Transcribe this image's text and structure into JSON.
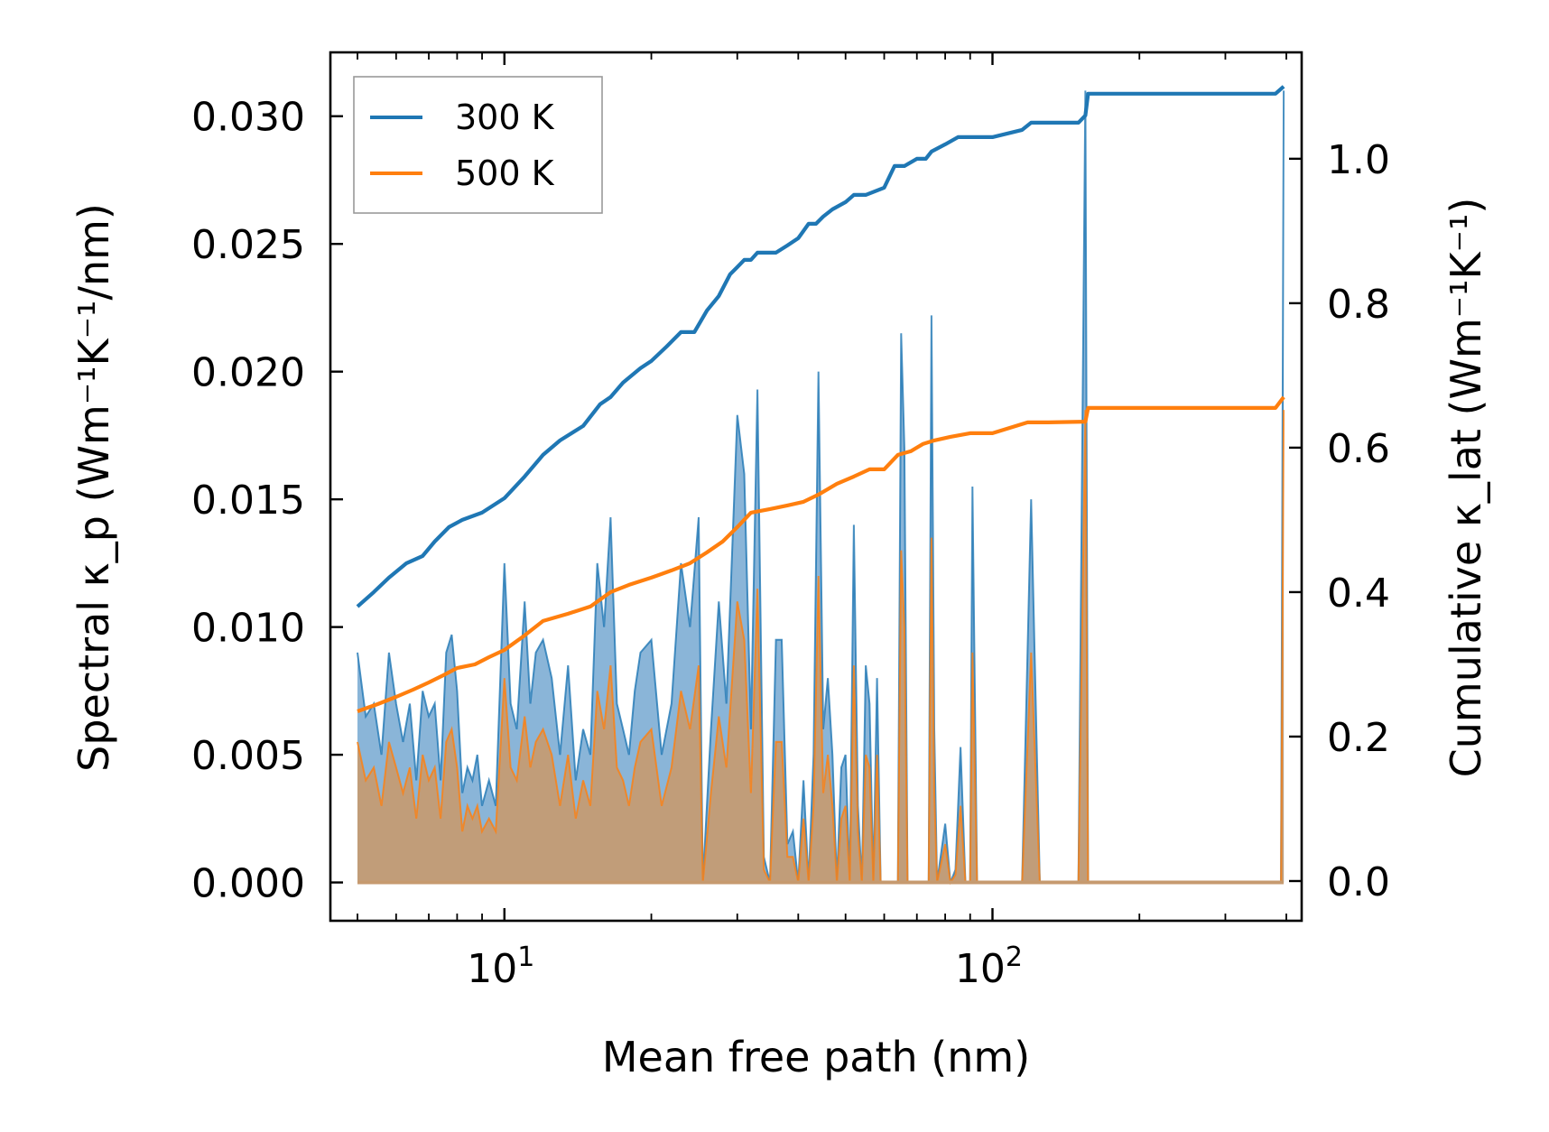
{
  "chart_data": {
    "type": "line",
    "title": "",
    "xlabel": "Mean free path (nm)",
    "ylabel_left": "Spectral κ_p (Wm⁻¹K⁻¹/nm)",
    "ylabel_right": "Cumulative κ_lat (Wm⁻¹K⁻¹)",
    "xscale": "log",
    "xlim": [
      4.4,
      430
    ],
    "ylim_left": [
      -0.0015,
      0.0325
    ],
    "ylim_right": [
      -0.055,
      1.1473
    ],
    "xticks": [
      {
        "value": 10,
        "base": "10",
        "exp": "1"
      },
      {
        "value": 100,
        "base": "10",
        "exp": "2"
      }
    ],
    "yticks_left": [
      "0.000",
      "0.005",
      "0.010",
      "0.015",
      "0.020",
      "0.025",
      "0.030"
    ],
    "yticks_right": [
      "0.0",
      "0.2",
      "0.4",
      "0.6",
      "0.8",
      "1.0"
    ],
    "legend": {
      "position": "top-left",
      "entries": [
        "300 K",
        "500 K"
      ]
    },
    "colors": {
      "s300": "#1f77b4",
      "s500": "#ff7f0e",
      "fill300": "#76a8d1",
      "fill500": "#c69a6f"
    },
    "series": [
      {
        "name": "300 K",
        "axis": "right",
        "kind": "cumulative",
        "x": [
          5.0,
          5.4,
          5.8,
          6.3,
          6.8,
          7.2,
          7.7,
          8.2,
          9.0,
          10.0,
          11.0,
          12.0,
          13.0,
          14.5,
          15.7,
          16.5,
          17.5,
          19.0,
          20.0,
          21.5,
          23.0,
          24.5,
          26.0,
          27.5,
          29.0,
          30.0,
          31.0,
          32.0,
          33.0,
          34.0,
          36.0,
          38.0,
          40.0,
          42.0,
          43.5,
          45.0,
          47.0,
          50.0,
          52.0,
          55.0,
          60.0,
          63.0,
          66.0,
          70.0,
          73.0,
          75.0,
          80.0,
          85.0,
          90.0,
          100.0,
          115.0,
          120.0,
          125.0,
          150.0,
          155.0,
          157.0,
          160.0,
          200.0,
          300.0,
          380.0,
          395.0
        ],
        "y": [
          0.38,
          0.4,
          0.42,
          0.44,
          0.45,
          0.47,
          0.49,
          0.5,
          0.51,
          0.53,
          0.56,
          0.59,
          0.61,
          0.63,
          0.66,
          0.67,
          0.69,
          0.71,
          0.72,
          0.74,
          0.76,
          0.76,
          0.79,
          0.81,
          0.84,
          0.85,
          0.86,
          0.86,
          0.87,
          0.87,
          0.87,
          0.88,
          0.89,
          0.91,
          0.91,
          0.92,
          0.93,
          0.94,
          0.95,
          0.95,
          0.96,
          0.99,
          0.99,
          1.0,
          1.0,
          1.01,
          1.02,
          1.03,
          1.03,
          1.03,
          1.04,
          1.05,
          1.05,
          1.05,
          1.06,
          1.09,
          1.09,
          1.09,
          1.09,
          1.09,
          1.1
        ]
      },
      {
        "name": "500 K",
        "axis": "right",
        "kind": "cumulative",
        "x": [
          5.0,
          5.5,
          6.0,
          6.5,
          7.0,
          7.5,
          8.0,
          8.7,
          9.3,
          10.0,
          11.0,
          12.0,
          13.5,
          15.0,
          16.5,
          18.0,
          20.0,
          22.0,
          24.0,
          26.0,
          28.0,
          30.0,
          32.0,
          35.0,
          38.0,
          41.0,
          44.0,
          48.0,
          52.0,
          56.0,
          60.0,
          64.0,
          68.0,
          72.0,
          76.0,
          82.0,
          90.0,
          100.0,
          118.0,
          130.0,
          155.0,
          157.0,
          200.0,
          300.0,
          380.0,
          395.0
        ],
        "y": [
          0.235,
          0.245,
          0.255,
          0.265,
          0.275,
          0.285,
          0.295,
          0.3,
          0.31,
          0.32,
          0.34,
          0.36,
          0.37,
          0.38,
          0.4,
          0.41,
          0.42,
          0.43,
          0.44,
          0.455,
          0.47,
          0.49,
          0.51,
          0.515,
          0.52,
          0.525,
          0.535,
          0.55,
          0.56,
          0.57,
          0.57,
          0.59,
          0.595,
          0.605,
          0.61,
          0.615,
          0.62,
          0.62,
          0.635,
          0.635,
          0.636,
          0.655,
          0.655,
          0.655,
          0.655,
          0.67
        ]
      },
      {
        "name": "300 K spectral",
        "axis": "left",
        "kind": "spectral",
        "x": [
          5.0,
          5.2,
          5.4,
          5.6,
          5.8,
          6.0,
          6.2,
          6.4,
          6.6,
          6.8,
          7.0,
          7.2,
          7.4,
          7.6,
          7.8,
          8.0,
          8.2,
          8.4,
          8.6,
          8.8,
          9.0,
          9.3,
          9.6,
          10.0,
          10.3,
          10.6,
          11.0,
          11.3,
          11.6,
          12.0,
          12.5,
          13.0,
          13.5,
          14.0,
          14.5,
          15.0,
          15.5,
          16.0,
          16.5,
          17.0,
          17.5,
          18.0,
          18.5,
          19.0,
          20.0,
          21.0,
          22.0,
          23.0,
          24.0,
          25.0,
          25.5,
          26.5,
          27.5,
          28.5,
          30.0,
          31.0,
          32.0,
          33.0,
          34.0,
          35.0,
          36.0,
          37.0,
          38.0,
          39.0,
          40.0,
          41.0,
          42.0,
          43.0,
          44.0,
          45.0,
          46.0,
          47.0,
          48.0,
          49.0,
          50.0,
          51.0,
          52.0,
          53.0,
          54.0,
          55.0,
          56.0,
          57.0,
          58.0,
          59.0,
          60.0,
          61.0,
          62.0,
          64.0,
          65.0,
          66.0,
          67.0,
          70.0,
          72.0,
          74.0,
          75.0,
          76.0,
          77.0,
          80.0,
          82.0,
          84.0,
          86.0,
          88.0,
          90.0,
          91.0,
          93.0,
          95.0,
          100.0,
          110.0,
          115.0,
          120.0,
          125.0,
          130.0,
          150.0,
          155.0,
          157.0,
          160.0,
          300.0,
          380.0,
          390.0,
          395.0
        ],
        "y": [
          0.009,
          0.0065,
          0.007,
          0.005,
          0.009,
          0.007,
          0.0055,
          0.007,
          0.004,
          0.0075,
          0.0065,
          0.007,
          0.004,
          0.009,
          0.0097,
          0.0075,
          0.0035,
          0.0045,
          0.004,
          0.005,
          0.003,
          0.004,
          0.003,
          0.0125,
          0.007,
          0.006,
          0.011,
          0.007,
          0.009,
          0.0095,
          0.008,
          0.005,
          0.0085,
          0.004,
          0.006,
          0.005,
          0.0125,
          0.01,
          0.0143,
          0.007,
          0.006,
          0.005,
          0.0075,
          0.009,
          0.0095,
          0.005,
          0.007,
          0.0125,
          0.01,
          0.0143,
          0.0,
          0.006,
          0.011,
          0.007,
          0.0183,
          0.016,
          0.006,
          0.0193,
          0.001,
          0.0,
          0.0095,
          0.0095,
          0.0015,
          0.002,
          0.0,
          0.004,
          0.0,
          0.005,
          0.02,
          0.006,
          0.008,
          0.005,
          0.0,
          0.0045,
          0.005,
          0.0,
          0.014,
          0.003,
          0.0,
          0.0085,
          0.007,
          0.0,
          0.008,
          0.0,
          0.0,
          0.0,
          0.0,
          0.0,
          0.0215,
          0.017,
          0.0,
          0.0,
          0.0,
          0.0,
          0.0222,
          0.006,
          0.0,
          0.0023,
          0.0,
          0.0005,
          0.0053,
          0.0,
          0.0,
          0.0155,
          0.0,
          0.0,
          0.0,
          0.0,
          0.0,
          0.015,
          0.0,
          0.0,
          0.0,
          0.031,
          0.0,
          0.0,
          0.0,
          0.0,
          0.0,
          0.031
        ]
      },
      {
        "name": "500 K spectral",
        "axis": "left",
        "kind": "spectral",
        "x": [
          5.0,
          5.2,
          5.4,
          5.6,
          5.8,
          6.0,
          6.2,
          6.4,
          6.6,
          6.8,
          7.0,
          7.2,
          7.4,
          7.6,
          7.8,
          8.0,
          8.2,
          8.4,
          8.6,
          8.8,
          9.0,
          9.3,
          9.6,
          10.0,
          10.3,
          10.6,
          11.0,
          11.3,
          11.6,
          12.0,
          12.5,
          13.0,
          13.5,
          14.0,
          14.5,
          15.0,
          15.5,
          16.0,
          16.5,
          17.0,
          17.5,
          18.0,
          18.5,
          19.0,
          20.0,
          21.0,
          22.0,
          23.0,
          24.0,
          25.0,
          25.5,
          26.5,
          27.5,
          28.5,
          30.0,
          31.0,
          32.0,
          33.0,
          34.0,
          35.0,
          36.0,
          37.0,
          38.0,
          39.0,
          40.0,
          41.0,
          42.0,
          43.0,
          44.0,
          45.0,
          46.0,
          47.0,
          48.0,
          49.0,
          50.0,
          51.0,
          52.0,
          53.0,
          54.0,
          55.0,
          56.0,
          57.0,
          58.0,
          59.0,
          60.0,
          61.0,
          62.0,
          64.0,
          65.0,
          66.0,
          67.0,
          70.0,
          72.0,
          74.0,
          75.0,
          76.0,
          77.0,
          80.0,
          82.0,
          84.0,
          86.0,
          88.0,
          90.0,
          91.0,
          93.0,
          95.0,
          100.0,
          110.0,
          115.0,
          120.0,
          125.0,
          130.0,
          150.0,
          155.0,
          157.0,
          160.0,
          300.0,
          380.0,
          390.0,
          395.0
        ],
        "y": [
          0.0055,
          0.004,
          0.0045,
          0.003,
          0.0055,
          0.0045,
          0.0035,
          0.0045,
          0.0025,
          0.005,
          0.004,
          0.0045,
          0.0025,
          0.0055,
          0.006,
          0.0045,
          0.002,
          0.003,
          0.0025,
          0.003,
          0.002,
          0.0025,
          0.002,
          0.008,
          0.0045,
          0.004,
          0.0065,
          0.0045,
          0.0055,
          0.006,
          0.005,
          0.003,
          0.005,
          0.0025,
          0.004,
          0.003,
          0.0075,
          0.006,
          0.0085,
          0.0045,
          0.004,
          0.003,
          0.0045,
          0.0055,
          0.006,
          0.003,
          0.0045,
          0.0075,
          0.006,
          0.0085,
          0.0,
          0.0035,
          0.0065,
          0.0045,
          0.011,
          0.0095,
          0.0035,
          0.0115,
          0.0005,
          0.0,
          0.0055,
          0.0055,
          0.001,
          0.001,
          0.0,
          0.0025,
          0.0,
          0.003,
          0.012,
          0.0035,
          0.005,
          0.003,
          0.0,
          0.0025,
          0.003,
          0.0,
          0.0085,
          0.002,
          0.0,
          0.005,
          0.0045,
          0.0,
          0.005,
          0.0,
          0.0,
          0.0,
          0.0,
          0.0,
          0.013,
          0.01,
          0.0,
          0.0,
          0.0,
          0.0,
          0.0135,
          0.0035,
          0.0,
          0.0015,
          0.0,
          0.0003,
          0.003,
          0.0,
          0.0,
          0.009,
          0.0,
          0.0,
          0.0,
          0.0,
          0.0,
          0.009,
          0.0,
          0.0,
          0.0,
          0.0185,
          0.0,
          0.0,
          0.0,
          0.0,
          0.0,
          0.0185
        ]
      }
    ]
  }
}
